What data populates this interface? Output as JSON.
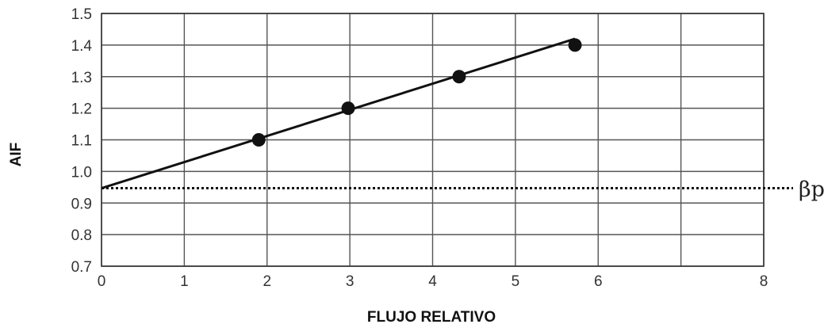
{
  "chart_data": {
    "type": "scatter",
    "title": "",
    "xlabel": "FLUJO RELATIVO",
    "ylabel": "AIF",
    "xlim": [
      0,
      8
    ],
    "ylim": [
      0.7,
      1.5
    ],
    "grid": true,
    "x_ticks": [
      {
        "value": 0,
        "label": "0"
      },
      {
        "value": 1,
        "label": "1"
      },
      {
        "value": 2,
        "label": "2"
      },
      {
        "value": 3,
        "label": "3"
      },
      {
        "value": 4,
        "label": "4"
      },
      {
        "value": 5,
        "label": "5"
      },
      {
        "value": 6,
        "label": "6"
      },
      {
        "value": 8,
        "label": "8"
      }
    ],
    "x_gridlines": [
      0,
      1,
      2,
      3,
      4,
      5,
      6,
      7,
      8
    ],
    "y_ticks": [
      {
        "value": 0.7,
        "label": "0.7"
      },
      {
        "value": 0.8,
        "label": "0.8"
      },
      {
        "value": 0.9,
        "label": "0.9"
      },
      {
        "value": 1.0,
        "label": "1.0"
      },
      {
        "value": 1.1,
        "label": "1.1"
      },
      {
        "value": 1.2,
        "label": "1.2"
      },
      {
        "value": 1.3,
        "label": "1.3"
      },
      {
        "value": 1.4,
        "label": "1.4"
      },
      {
        "value": 1.5,
        "label": "1.5"
      }
    ],
    "points": [
      {
        "x": 1.9,
        "y": 1.1
      },
      {
        "x": 2.98,
        "y": 1.2
      },
      {
        "x": 4.32,
        "y": 1.3
      },
      {
        "x": 5.72,
        "y": 1.4
      }
    ],
    "fit_line": {
      "x": [
        0,
        5.72
      ],
      "y": [
        0.947,
        1.42
      ]
    },
    "reference_line": {
      "y": 0.947,
      "style": "dotted",
      "label": "βp"
    },
    "colors": {
      "line": "#111111",
      "grid": "#555555",
      "frame": "#333333"
    }
  }
}
